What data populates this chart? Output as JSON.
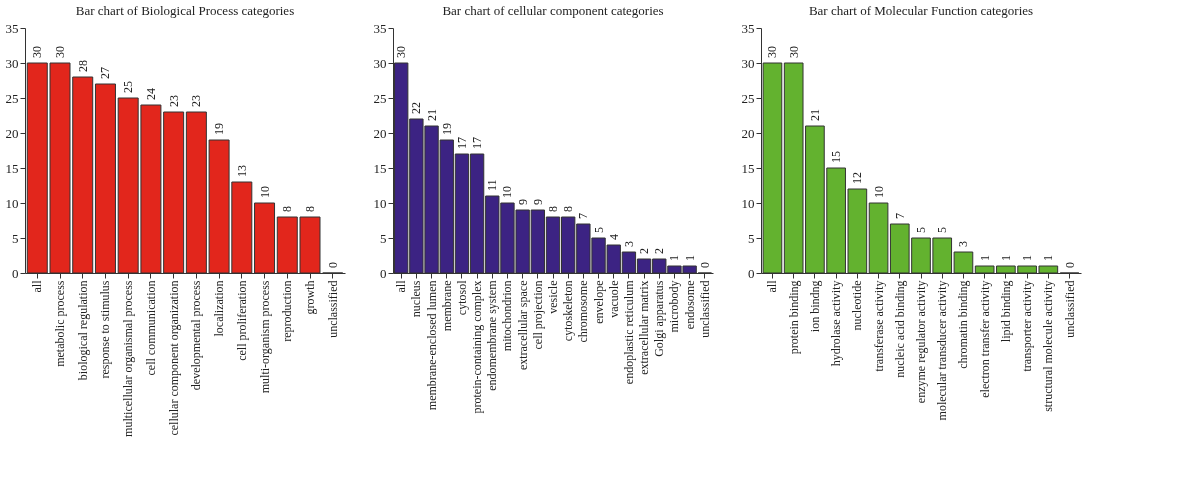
{
  "chart_data": [
    {
      "type": "bar",
      "title": "Bar chart of Biological Process categories",
      "categories": [
        "all",
        "metabolic process",
        "biological regulation",
        "response to stimulus",
        "multicellular organismal process",
        "cell communication",
        "cellular component organization",
        "developmental process",
        "localization",
        "cell proliferation",
        "multi-organism process",
        "reproduction",
        "growth",
        "unclassified"
      ],
      "values": [
        30,
        30,
        28,
        27,
        25,
        24,
        23,
        23,
        19,
        13,
        10,
        8,
        8,
        0
      ],
      "color": "#e2261c",
      "ylim": [
        0,
        35
      ],
      "yticks": [
        0,
        5,
        10,
        15,
        20,
        25,
        30,
        35
      ],
      "grid": false,
      "data_labels": true
    },
    {
      "type": "bar",
      "title": "Bar chart of cellular component categories",
      "categories": [
        "all",
        "nucleus",
        "membrane-enclosed lumen",
        "membrane",
        "cytosol",
        "protein-containing complex",
        "endomembrane system",
        "mitochondrion",
        "extracellular space",
        "cell projection",
        "vesicle",
        "cytoskeleton",
        "chromosome",
        "envelope",
        "vacuole",
        "endoplastic reticulum",
        "extracellular matrix",
        "Golgi apparatus",
        "microbody",
        "endosome",
        "unclassified"
      ],
      "values": [
        30,
        22,
        21,
        19,
        17,
        17,
        11,
        10,
        9,
        9,
        8,
        8,
        7,
        5,
        4,
        3,
        2,
        2,
        1,
        1,
        0
      ],
      "color": "#3c2383",
      "ylim": [
        0,
        35
      ],
      "yticks": [
        0,
        5,
        10,
        15,
        20,
        25,
        30,
        35
      ],
      "grid": false,
      "data_labels": true
    },
    {
      "type": "bar",
      "title": "Bar chart of Molecular Function categories",
      "categories": [
        "all",
        "protein binding",
        "ion bindng",
        "hydrolase activity",
        "nucleotide",
        "transferase activity",
        "nucleic acid binding",
        "enzyme regulator activity",
        "molecular transducer activity",
        "chromatin binding",
        "electron transfer activity",
        "lipid binding",
        "transporter activity",
        "structural molecule activity",
        "unclassified"
      ],
      "values": [
        30,
        30,
        21,
        15,
        12,
        10,
        7,
        5,
        5,
        3,
        1,
        1,
        1,
        1,
        0
      ],
      "color": "#63b22f",
      "ylim": [
        0,
        35
      ],
      "yticks": [
        0,
        5,
        10,
        15,
        20,
        25,
        30,
        35
      ],
      "grid": false,
      "data_labels": true
    }
  ]
}
